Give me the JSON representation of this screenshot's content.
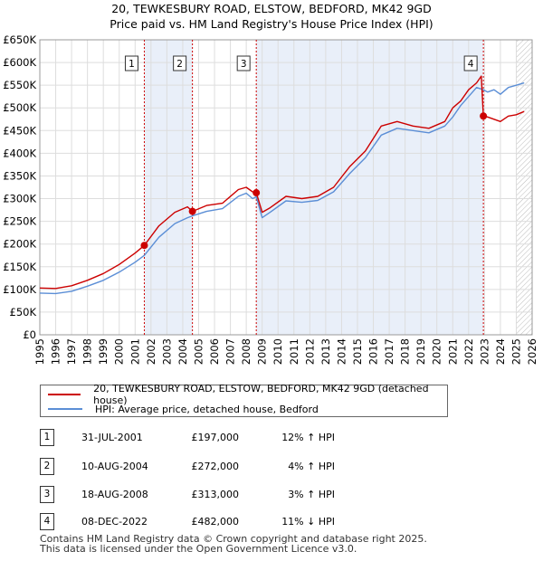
{
  "header": {
    "title_line1": "20, TEWKESBURY ROAD, ELSTOW, BEDFORD, MK42 9GD",
    "title_line2": "Price paid vs. HM Land Registry's House Price Index (HPI)"
  },
  "colors": {
    "property": "#cc0000",
    "hpi": "#5b8ed6",
    "shade": "#e9eff9",
    "grid": "#dddddd",
    "marker_line": "#cc0000"
  },
  "chart_data": {
    "type": "line",
    "xlim": [
      1995,
      2026
    ],
    "ylim": [
      0,
      650000
    ],
    "y_ticks": [
      0,
      50000,
      100000,
      150000,
      200000,
      250000,
      300000,
      350000,
      400000,
      450000,
      500000,
      550000,
      600000,
      650000
    ],
    "y_tick_labels": [
      "£0",
      "£50K",
      "£100K",
      "£150K",
      "£200K",
      "£250K",
      "£300K",
      "£350K",
      "£400K",
      "£450K",
      "£500K",
      "£550K",
      "£600K",
      "£650K"
    ],
    "x_ticks": [
      1995,
      1996,
      1997,
      1998,
      1999,
      2000,
      2001,
      2002,
      2003,
      2004,
      2005,
      2006,
      2007,
      2008,
      2009,
      2010,
      2011,
      2012,
      2013,
      2014,
      2015,
      2016,
      2017,
      2018,
      2019,
      2020,
      2021,
      2022,
      2023,
      2024,
      2025,
      2026
    ],
    "x_tick_labels": [
      "1995",
      "1996",
      "1997",
      "1998",
      "1999",
      "2000",
      "2001",
      "2002",
      "2003",
      "2004",
      "2005",
      "2006",
      "2007",
      "2008",
      "2009",
      "2010",
      "2011",
      "2012",
      "2013",
      "2014",
      "2015",
      "2016",
      "2017",
      "2018",
      "2019",
      "2020",
      "2021",
      "2022",
      "2023",
      "2024",
      "2025",
      "2026"
    ],
    "shaded_ranges": [
      [
        2001.58,
        2004.61
      ],
      [
        2008.63,
        2022.93
      ]
    ],
    "hatched_from": 2025.0,
    "series": [
      {
        "name": "20, TEWKESBURY ROAD, ELSTOW, BEDFORD, MK42 9GD (detached house)",
        "color": "#cc0000",
        "x": [
          1995.0,
          1996.0,
          1997.0,
          1998.0,
          1999.0,
          2000.0,
          2001.0,
          2001.58,
          2002.5,
          2003.5,
          2004.3,
          2004.61,
          2005.5,
          2006.5,
          2007.5,
          2008.0,
          2008.4,
          2008.63,
          2009.0,
          2009.5,
          2010.5,
          2011.5,
          2012.5,
          2013.5,
          2014.5,
          2015.5,
          2016.5,
          2017.5,
          2018.5,
          2019.5,
          2020.5,
          2021.0,
          2021.5,
          2022.0,
          2022.5,
          2022.8,
          2022.93,
          2023.2,
          2023.6,
          2024.0,
          2024.5,
          2025.0,
          2025.5
        ],
        "y": [
          103000,
          102000,
          108000,
          120000,
          135000,
          155000,
          180000,
          197000,
          240000,
          270000,
          282000,
          272000,
          285000,
          290000,
          320000,
          325000,
          315000,
          313000,
          270000,
          280000,
          305000,
          300000,
          305000,
          325000,
          370000,
          405000,
          460000,
          470000,
          460000,
          455000,
          470000,
          500000,
          515000,
          540000,
          555000,
          570000,
          482000,
          480000,
          475000,
          470000,
          482000,
          485000,
          492000
        ]
      },
      {
        "name": "HPI: Average price, detached house, Bedford",
        "color": "#5b8ed6",
        "x": [
          1995.0,
          1996.0,
          1997.0,
          1998.0,
          1999.0,
          2000.0,
          2001.0,
          2001.58,
          2002.5,
          2003.5,
          2004.3,
          2004.61,
          2005.5,
          2006.5,
          2007.5,
          2008.0,
          2008.4,
          2008.63,
          2009.0,
          2009.5,
          2010.5,
          2011.5,
          2012.5,
          2013.5,
          2014.5,
          2015.5,
          2016.5,
          2017.5,
          2018.5,
          2019.5,
          2020.5,
          2021.0,
          2021.5,
          2022.0,
          2022.5,
          2022.93,
          2023.2,
          2023.6,
          2024.0,
          2024.5,
          2025.0,
          2025.5
        ],
        "y": [
          92000,
          91000,
          96000,
          107000,
          120000,
          138000,
          160000,
          175000,
          215000,
          245000,
          258000,
          262000,
          272000,
          278000,
          305000,
          312000,
          300000,
          304000,
          258000,
          270000,
          295000,
          292000,
          296000,
          315000,
          355000,
          390000,
          440000,
          455000,
          450000,
          445000,
          460000,
          480000,
          505000,
          525000,
          545000,
          540000,
          535000,
          540000,
          530000,
          545000,
          550000,
          555000
        ]
      }
    ],
    "transaction_markers": [
      {
        "label": "1",
        "x": 2001.58,
        "y": 197000
      },
      {
        "label": "2",
        "x": 2004.61,
        "y": 272000
      },
      {
        "label": "3",
        "x": 2008.63,
        "y": 313000
      },
      {
        "label": "4",
        "x": 2022.93,
        "y": 482000
      }
    ]
  },
  "legend": {
    "property_label": "20, TEWKESBURY ROAD, ELSTOW, BEDFORD, MK42 9GD (detached house)",
    "hpi_label": "HPI: Average price, detached house, Bedford"
  },
  "transactions": [
    {
      "num": "1",
      "date": "31-JUL-2001",
      "price": "£197,000",
      "hpi": "12% ↑ HPI"
    },
    {
      "num": "2",
      "date": "10-AUG-2004",
      "price": "£272,000",
      "hpi": "4% ↑ HPI"
    },
    {
      "num": "3",
      "date": "18-AUG-2008",
      "price": "£313,000",
      "hpi": "3% ↑ HPI"
    },
    {
      "num": "4",
      "date": "08-DEC-2022",
      "price": "£482,000",
      "hpi": "11% ↓ HPI"
    }
  ],
  "footer": {
    "line1": "Contains HM Land Registry data © Crown copyright and database right 2025.",
    "line2": "This data is licensed under the Open Government Licence v3.0."
  }
}
